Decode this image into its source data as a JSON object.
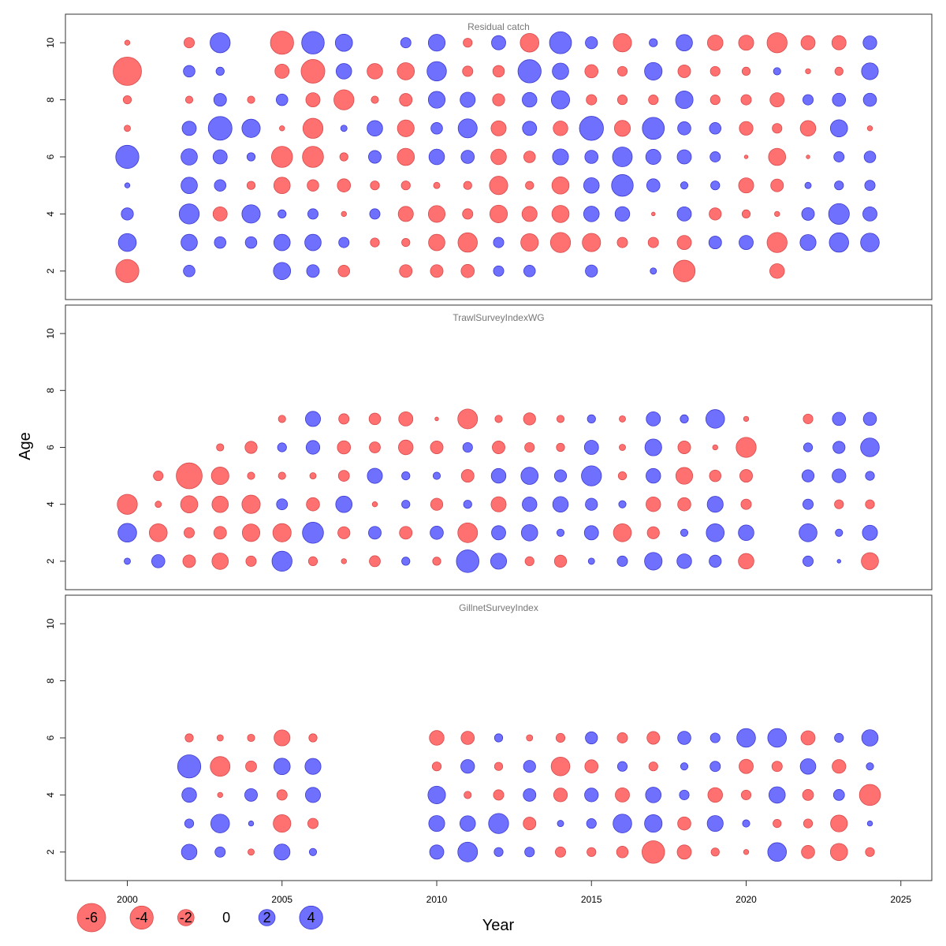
{
  "colors": {
    "negative": "#ff7070",
    "negative_stroke": "#d94a4a",
    "positive": "#7070ff",
    "positive_stroke": "#3a3ad0",
    "frame": "#333333",
    "title": "#777777"
  },
  "chart_data": {
    "type": "bubble",
    "xlabel": "Year",
    "ylabel": "Age",
    "xlim": [
      1998,
      2026
    ],
    "ylim": [
      1,
      11
    ],
    "x_ticks": [
      2000,
      2005,
      2010,
      2015,
      2020,
      2025
    ],
    "y_ticks": [
      2,
      4,
      6,
      8,
      10
    ],
    "legend": {
      "values": [
        -6,
        -4,
        -2,
        0,
        2,
        4
      ],
      "labels": [
        "-6",
        "-4",
        "-2",
        "0",
        "2",
        "4"
      ]
    },
    "panels": [
      {
        "title": "Residual catch",
        "years": [
          2000,
          2002,
          2003,
          2004,
          2005,
          2006,
          2007,
          2008,
          2009,
          2010,
          2011,
          2012,
          2013,
          2014,
          2015,
          2016,
          2017,
          2018,
          2019,
          2020,
          2021,
          2022,
          2023,
          2024
        ],
        "ages": [
          2,
          3,
          4,
          5,
          6,
          7,
          8,
          9,
          10
        ],
        "residuals": [
          [
            -4.0,
            2.4,
            1.1,
            0.2,
            4.0,
            -0.3,
            -0.5,
            -6.0,
            -0.2
          ],
          [
            1.0,
            2.0,
            3.0,
            2.0,
            2.0,
            1.5,
            -0.4,
            1.0,
            -0.8
          ],
          [
            null,
            1.0,
            -1.5,
            1.0,
            1.5,
            4.2,
            1.2,
            0.5,
            3.0
          ],
          [
            null,
            1.0,
            2.5,
            -0.5,
            0.5,
            2.5,
            -0.4,
            null,
            null
          ],
          [
            2.2,
            2.0,
            0.5,
            -2.0,
            -3.3,
            -0.2,
            1.0,
            -1.5,
            -4.0
          ],
          [
            1.2,
            2.0,
            0.8,
            -1.0,
            -3.3,
            -3.0,
            -1.5,
            -4.2,
            3.8
          ],
          [
            -1.0,
            0.8,
            -0.2,
            -1.3,
            -0.5,
            0.3,
            -3.0,
            1.8,
            2.2
          ],
          [
            null,
            -0.6,
            0.8,
            -0.6,
            1.2,
            1.8,
            -0.4,
            -1.8,
            null
          ],
          [
            -1.2,
            -0.5,
            -1.7,
            -0.6,
            -2.2,
            -2.1,
            -1.2,
            -2.2,
            0.8
          ],
          [
            -1.2,
            -2.0,
            -2.1,
            -0.3,
            1.8,
            1.0,
            2.1,
            2.8,
            2.1
          ],
          [
            -1.3,
            -2.8,
            -0.8,
            -0.5,
            1.3,
            2.7,
            1.7,
            -0.8,
            -0.6
          ],
          [
            0.8,
            0.8,
            -2.3,
            -2.5,
            -1.8,
            -1.7,
            -1.1,
            -1.0,
            1.5
          ],
          [
            1.0,
            -2.3,
            -1.7,
            -0.5,
            -1.0,
            1.5,
            1.6,
            4.0,
            -2.6
          ],
          [
            null,
            -3.0,
            -2.2,
            -2.2,
            1.9,
            -1.6,
            2.5,
            2.0,
            3.6
          ],
          [
            1.1,
            -2.5,
            1.8,
            1.8,
            1.3,
            4.3,
            -0.8,
            -1.3,
            1.1
          ],
          [
            null,
            -0.8,
            1.6,
            3.5,
            2.9,
            -1.9,
            -0.7,
            -0.7,
            -2.5
          ],
          [
            0.3,
            -0.8,
            -0.1,
            1.3,
            1.7,
            3.6,
            -0.7,
            2.3,
            0.5
          ],
          [
            -3.5,
            -1.5,
            1.5,
            0.4,
            1.5,
            1.3,
            2.3,
            -1.2,
            2.0
          ],
          [
            null,
            1.2,
            -1.1,
            0.6,
            0.8,
            1.0,
            -0.7,
            -0.7,
            -1.8
          ],
          [
            null,
            1.5,
            -0.5,
            -1.7,
            -0.1,
            -1.4,
            -0.8,
            -0.5,
            -1.7
          ],
          [
            -1.6,
            -3.0,
            -0.2,
            -1.2,
            -2.2,
            -0.7,
            -1.5,
            0.4,
            -3.0
          ],
          [
            null,
            1.9,
            1.2,
            0.3,
            -0.1,
            -1.8,
            0.8,
            -0.2,
            -1.5
          ],
          [
            null,
            2.8,
            3.2,
            0.6,
            0.8,
            2.2,
            1.3,
            -0.5,
            -1.5
          ],
          [
            null,
            2.6,
            1.5,
            0.8,
            1.0,
            -0.2,
            1.3,
            2.1,
            1.4
          ]
        ]
      },
      {
        "title": "TrawlSurveyIndexWG",
        "years": [
          2000,
          2001,
          2002,
          2003,
          2004,
          2005,
          2006,
          2007,
          2008,
          2009,
          2010,
          2011,
          2012,
          2013,
          2014,
          2015,
          2016,
          2017,
          2018,
          2019,
          2020,
          2022,
          2023,
          2024
        ],
        "ages": [
          2,
          3,
          4,
          5,
          6,
          7
        ],
        "residuals": [
          [
            0.3,
            2.6,
            -3.0,
            null,
            null,
            null
          ],
          [
            1.3,
            -2.4,
            -0.3,
            -0.7,
            null,
            null
          ],
          [
            -1.2,
            -0.8,
            -2.2,
            -5.0,
            null,
            null
          ],
          [
            -2.0,
            -1.2,
            -2.0,
            -2.3,
            -0.4,
            null
          ],
          [
            -0.8,
            -2.3,
            -2.5,
            -0.4,
            -1.1,
            null
          ],
          [
            3.0,
            -2.5,
            0.9,
            -0.4,
            0.6,
            -0.4
          ],
          [
            -0.6,
            3.3,
            -1.3,
            -0.3,
            1.4,
            1.7
          ],
          [
            -0.2,
            -1.1,
            2.0,
            -0.9,
            -1.3,
            -0.8
          ],
          [
            -0.9,
            1.2,
            -0.2,
            1.7,
            -0.9,
            -1.0
          ],
          [
            0.5,
            -1.2,
            0.5,
            0.5,
            -1.6,
            -1.5
          ],
          [
            -0.5,
            1.3,
            -1.1,
            0.4,
            -1.2,
            -0.1
          ],
          [
            3.8,
            -2.9,
            0.5,
            -1.2,
            0.7,
            -2.9
          ],
          [
            1.9,
            1.5,
            -1.7,
            1.6,
            -1.2,
            -0.4
          ],
          [
            -0.6,
            2.0,
            1.6,
            2.2,
            -0.7,
            -1.1
          ],
          [
            -1.1,
            0.4,
            1.8,
            1.1,
            -0.5,
            -0.4
          ],
          [
            0.3,
            1.5,
            1.1,
            3.0,
            1.5,
            0.5
          ],
          [
            0.8,
            -2.4,
            0.4,
            -0.5,
            -0.3,
            -0.3
          ],
          [
            2.3,
            -1.1,
            -1.6,
            1.6,
            2.1,
            1.5
          ],
          [
            1.6,
            0.4,
            -1.3,
            -2.1,
            -1.2,
            0.5
          ],
          [
            1.1,
            2.4,
            1.9,
            -1.0,
            -0.2,
            2.6
          ],
          [
            -1.8,
            1.8,
            -0.8,
            -1.2,
            -3.0,
            -0.2
          ],
          [
            0.8,
            2.4,
            0.8,
            1.1,
            0.6,
            -0.7
          ],
          [
            0.1,
            0.4,
            -0.6,
            1.4,
            1.1,
            1.3
          ],
          [
            -2.2,
            1.7,
            -0.6,
            0.6,
            2.6,
            1.3
          ]
        ]
      },
      {
        "title": "GillnetSurveyIndex",
        "years": [
          2002,
          2003,
          2004,
          2005,
          2006,
          2010,
          2011,
          2012,
          2013,
          2014,
          2015,
          2016,
          2017,
          2018,
          2019,
          2020,
          2021,
          2022,
          2023,
          2024
        ],
        "ages": [
          2,
          3,
          4,
          5,
          6
        ],
        "residuals": [
          [
            1.8,
            0.6,
            1.6,
            4.0,
            -0.5
          ],
          [
            0.8,
            2.6,
            -0.2,
            -2.9,
            -0.3
          ],
          [
            -0.3,
            0.2,
            1.2,
            -0.9,
            -0.4
          ],
          [
            1.9,
            -2.3,
            -0.8,
            2.0,
            -1.9
          ],
          [
            0.4,
            -0.8,
            1.7,
            1.9,
            -0.5
          ],
          [
            1.5,
            1.9,
            2.3,
            -0.6,
            -1.6
          ],
          [
            2.9,
            1.8,
            -0.4,
            1.4,
            -1.3
          ],
          [
            0.6,
            3.0,
            -0.8,
            -0.5,
            0.5
          ],
          [
            0.7,
            -1.2,
            1.2,
            1.1,
            -0.3
          ],
          [
            -0.8,
            0.3,
            -1.4,
            -2.6,
            -0.6
          ],
          [
            -0.6,
            0.7,
            1.4,
            -1.3,
            1.1
          ],
          [
            -1.0,
            2.6,
            -1.5,
            0.7,
            -0.8
          ],
          [
            -3.8,
            2.3,
            1.8,
            -0.6,
            -1.2
          ],
          [
            -1.5,
            -1.3,
            0.7,
            0.4,
            1.3
          ],
          [
            -0.5,
            1.9,
            -1.6,
            0.8,
            0.7
          ],
          [
            -0.2,
            0.4,
            -0.7,
            -1.5,
            2.6
          ],
          [
            2.6,
            -0.5,
            2.0,
            -0.8,
            2.6
          ],
          [
            -1.3,
            -0.6,
            -0.9,
            1.8,
            -1.5
          ],
          [
            -2.2,
            -2.1,
            0.9,
            -1.4,
            0.6
          ],
          [
            -0.6,
            0.2,
            -3.3,
            0.4,
            2.0
          ]
        ]
      }
    ]
  }
}
